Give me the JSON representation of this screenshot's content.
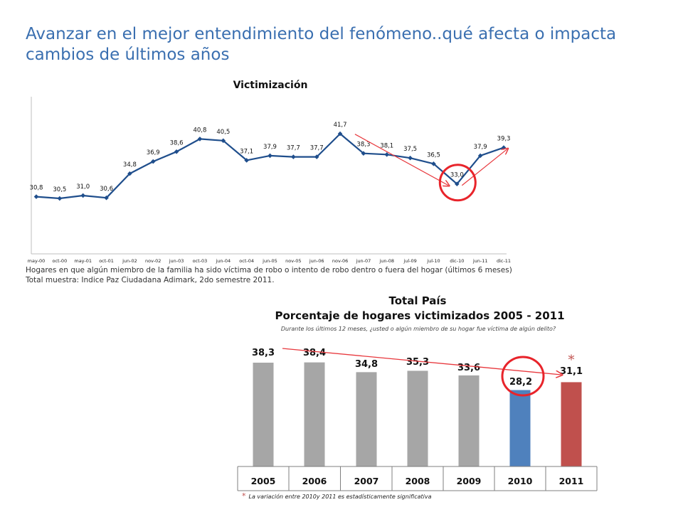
{
  "page": {
    "title_line1": "Avanzar en el mejor entendimiento del fenómeno..qué afecta o impacta",
    "title_line2": "cambios de últimos años"
  },
  "caption": {
    "line1": "Hogares en que algún miembro de la familia ha sido víctima de robo o intento de robo dentro o fuera del hogar (últimos 6 meses)",
    "line2": "Total muestra: Indice Paz Ciudadana Adimark, 2do semestre 2011."
  },
  "footnote": {
    "star": "*",
    "text": "La variación entre 2010y 2011 es estadísticamente significativa"
  },
  "colors": {
    "line": "#1f4e8c",
    "bar_gray": "#a6a6a6",
    "bar_2010": "#4f81bd",
    "bar_2011": "#c0504d",
    "annotation": "#e8242b",
    "trend": "#e8383d"
  },
  "chart_data": [
    {
      "type": "line",
      "title": "Victimización",
      "categories": [
        "may-00",
        "oct-00",
        "may-01",
        "oct-01",
        "jun-02",
        "nov-02",
        "jun-03",
        "oct-03",
        "jun-04",
        "oct-04",
        "jun-05",
        "nov-05",
        "jun-06",
        "nov-06",
        "jun-07",
        "jun-08",
        "jul-09",
        "jul-10",
        "dic-10",
        "jun-11",
        "dic-11"
      ],
      "series": [
        {
          "values": [
            30.8,
            30.5,
            31.0,
            30.6,
            34.8,
            36.9,
            38.6,
            40.8,
            40.5,
            37.1,
            37.9,
            37.7,
            37.7,
            41.7,
            38.3,
            38.1,
            37.5,
            36.5,
            33.0,
            37.9,
            39.3
          ]
        }
      ],
      "data_labels": [
        "30,8",
        "30,5",
        "31,0",
        "30,6",
        "34,8",
        "36,9",
        "38,6",
        "40,8",
        "40,5",
        "37,1",
        "37,9",
        "37,7",
        "37,7",
        "41,7",
        "38,3",
        "38,1",
        "37,5",
        "36,5",
        "33,0",
        "37,9",
        "39,3"
      ],
      "annotations": [
        "circle on dic-10 value",
        "down trend arrow jun-07 to dic-10",
        "up trend arrow dic-10 to dic-11"
      ]
    },
    {
      "type": "bar",
      "title": "Total País",
      "subtitle": "Porcentaje de hogares victimizados 2005 - 2011",
      "question": "Durante los últimos 12 meses, ¿usted o algún miembro de su hogar fue víctima de algún delito?",
      "categories": [
        "2005",
        "2006",
        "2007",
        "2008",
        "2009",
        "2010",
        "2011"
      ],
      "values": [
        38.3,
        38.4,
        34.8,
        35.3,
        33.6,
        28.2,
        31.1
      ],
      "data_labels": [
        "38,3",
        "38,4",
        "34,8",
        "35,3",
        "33,6",
        "28,2",
        "31,1"
      ],
      "significance_marker": "*",
      "annotations": [
        "circle on 2010 value",
        "trend arrow 2005 to 2011"
      ]
    }
  ]
}
